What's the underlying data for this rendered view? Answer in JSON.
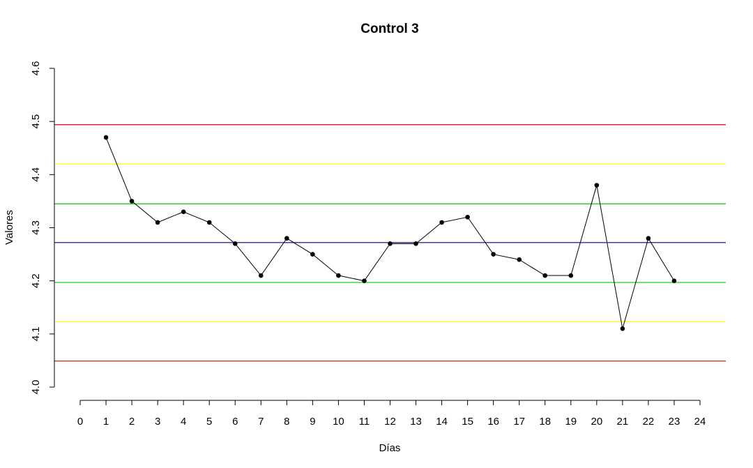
{
  "chart_data": {
    "type": "line",
    "title": "Control 3",
    "xlabel": "Días",
    "ylabel": "Valores",
    "xlim": [
      0,
      24
    ],
    "ylim": [
      4.0,
      4.6
    ],
    "x_ticks": [
      "0",
      "1",
      "2",
      "3",
      "4",
      "5",
      "6",
      "7",
      "8",
      "9",
      "10",
      "11",
      "12",
      "13",
      "14",
      "15",
      "16",
      "17",
      "18",
      "19",
      "20",
      "21",
      "22",
      "23",
      "24"
    ],
    "y_ticks": [
      "4.0",
      "4.1",
      "4.2",
      "4.3",
      "4.4",
      "4.5",
      "4.6"
    ],
    "grid": false,
    "x": [
      1,
      2,
      3,
      4,
      5,
      6,
      7,
      8,
      9,
      10,
      11,
      12,
      13,
      14,
      15,
      16,
      17,
      18,
      19,
      20,
      21,
      22,
      23
    ],
    "y": [
      4.47,
      4.35,
      4.31,
      4.33,
      4.31,
      4.27,
      4.21,
      4.28,
      4.25,
      4.21,
      4.2,
      4.27,
      4.27,
      4.31,
      4.32,
      4.25,
      4.24,
      4.21,
      4.21,
      4.38,
      4.11,
      4.28,
      4.2
    ],
    "series_color": "#000000",
    "reference_lines": [
      {
        "value": 4.494,
        "color": "#dd0000"
      },
      {
        "value": 4.42,
        "color": "#ffff00"
      },
      {
        "value": 4.345,
        "color": "#00cc00"
      },
      {
        "value": 4.272,
        "color": "#000080"
      },
      {
        "value": 4.197,
        "color": "#00cc00"
      },
      {
        "value": 4.123,
        "color": "#ffff00"
      },
      {
        "value": 4.049,
        "color": "#dd0000"
      }
    ]
  }
}
